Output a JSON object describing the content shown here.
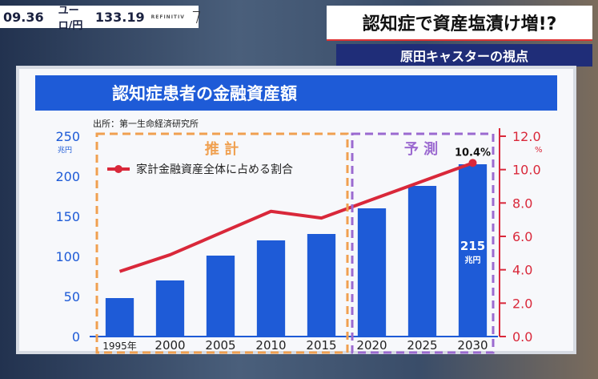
{
  "ticker": {
    "time": "09.36",
    "pair": "ユーロ/円",
    "rate": "133.19",
    "source": "REFINITIV"
  },
  "headline": "認知症で資産塩漬け増!?",
  "subtitle": "原田キャスターの視点",
  "chart_data": {
    "type": "bar",
    "title": "認知症患者の金融資産額",
    "source": "出所：第一生命経済研究所",
    "categories": [
      "1995年",
      "2000",
      "2005",
      "2010",
      "2015",
      "2020",
      "2025",
      "2030"
    ],
    "series": [
      {
        "type": "bar",
        "values": [
          48,
          70,
          101,
          120,
          128,
          160,
          188,
          215
        ],
        "color": "#1e5bd7"
      },
      {
        "type": "line",
        "name": "家計金融資産全体に占める割合",
        "values": [
          3.9,
          4.9,
          6.2,
          7.5,
          7.1,
          8.2,
          9.3,
          10.4
        ],
        "color": "#d9283a"
      }
    ],
    "y_left": {
      "unit": "兆円",
      "ticks": [
        "0",
        "50",
        "100",
        "150",
        "200",
        "250"
      ],
      "range": [
        0,
        250
      ]
    },
    "y_right": {
      "unit": "%",
      "ticks": [
        "0.0",
        "2.0",
        "4.0",
        "6.0",
        "8.0",
        "10.0",
        "12.0"
      ],
      "range": [
        0,
        12
      ]
    },
    "annotations": {
      "estimate_label": "推 計",
      "forecast_label": "予 測",
      "last_bar_value": "215",
      "last_bar_unit": "兆円",
      "last_point_value": "10.4%"
    },
    "colors": {
      "estimate_box": "#f0a050",
      "forecast_box": "#9b6ad0",
      "bar": "#1e5bd7",
      "line": "#d9283a",
      "title_band": "#1e5bd7"
    },
    "grid": false
  }
}
